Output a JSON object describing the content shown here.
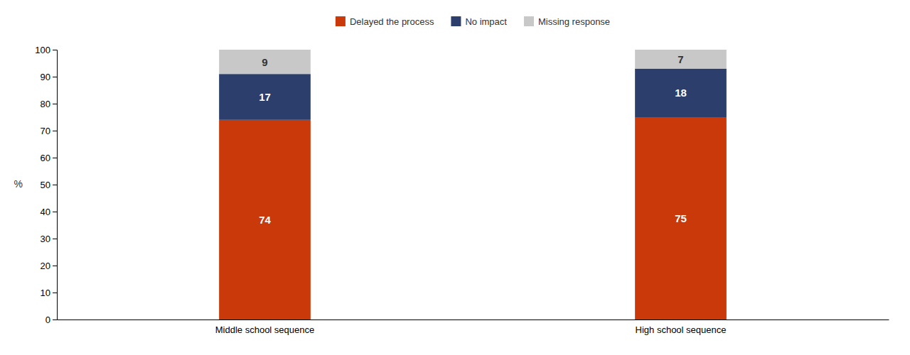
{
  "chart_data": {
    "type": "bar",
    "stacked": true,
    "categories": [
      "Middle school sequence",
      "High school sequence"
    ],
    "series": [
      {
        "name": "Delayed the process",
        "color": "#C9390A",
        "values": [
          74,
          75
        ]
      },
      {
        "name": "No impact",
        "color": "#2C3E6B",
        "values": [
          17,
          18
        ]
      },
      {
        "name": "Missing response",
        "color": "#C8C8C8",
        "values": [
          9,
          7
        ]
      }
    ],
    "y_label": "%",
    "ylim": [
      0,
      100
    ],
    "yticks": [
      0,
      10,
      20,
      30,
      40,
      50,
      60,
      70,
      80,
      90,
      100
    ],
    "data_labels": true,
    "legend": "top",
    "grid": false
  }
}
